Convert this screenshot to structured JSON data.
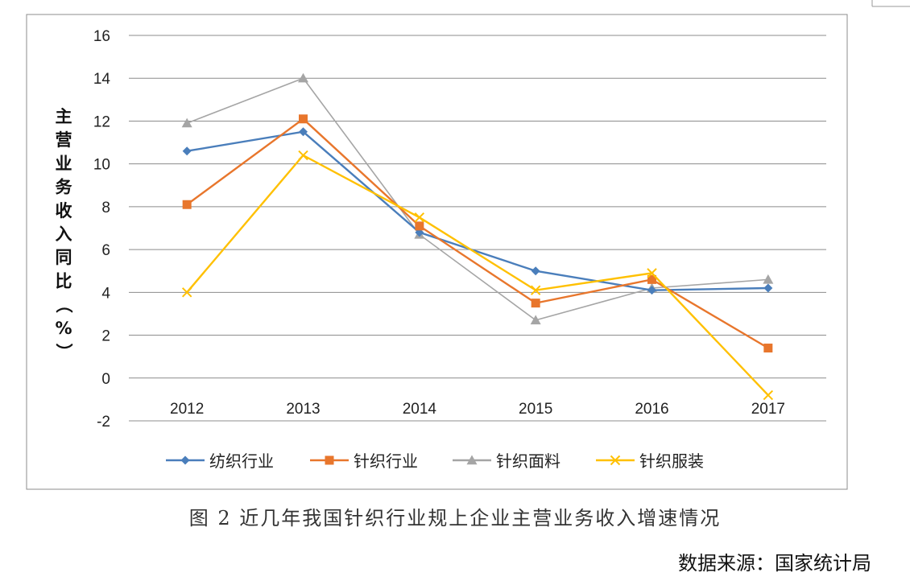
{
  "chart_data": {
    "type": "line",
    "categories": [
      "2012",
      "2013",
      "2014",
      "2015",
      "2016",
      "2017"
    ],
    "ylabel": "主营业务收入同比（%）",
    "ylim": [
      -2,
      16
    ],
    "yticks": [
      "16",
      "14",
      "12",
      "10",
      "8",
      "6",
      "4",
      "2",
      "0",
      "-2"
    ],
    "grid": true,
    "legend_position": "bottom",
    "series": [
      {
        "name": "纺织行业",
        "color": "#4a7ebb",
        "marker": "diamond",
        "values": [
          10.6,
          11.5,
          6.8,
          5.0,
          4.1,
          4.2
        ]
      },
      {
        "name": "针织行业",
        "color": "#e8762c",
        "marker": "square",
        "values": [
          8.1,
          12.1,
          7.1,
          3.5,
          4.6,
          1.4
        ]
      },
      {
        "name": "针织面料",
        "color": "#a5a5a5",
        "marker": "triangle",
        "values": [
          11.9,
          14.0,
          6.7,
          2.7,
          4.2,
          4.6
        ]
      },
      {
        "name": "针织服装",
        "color": "#ffc000",
        "marker": "x",
        "values": [
          4.0,
          10.4,
          7.5,
          4.1,
          4.9,
          -0.8
        ]
      }
    ]
  },
  "caption": "图 2 近几年我国针织行业规上企业主营业务收入增速情况",
  "source": "数据来源：国家统计局"
}
